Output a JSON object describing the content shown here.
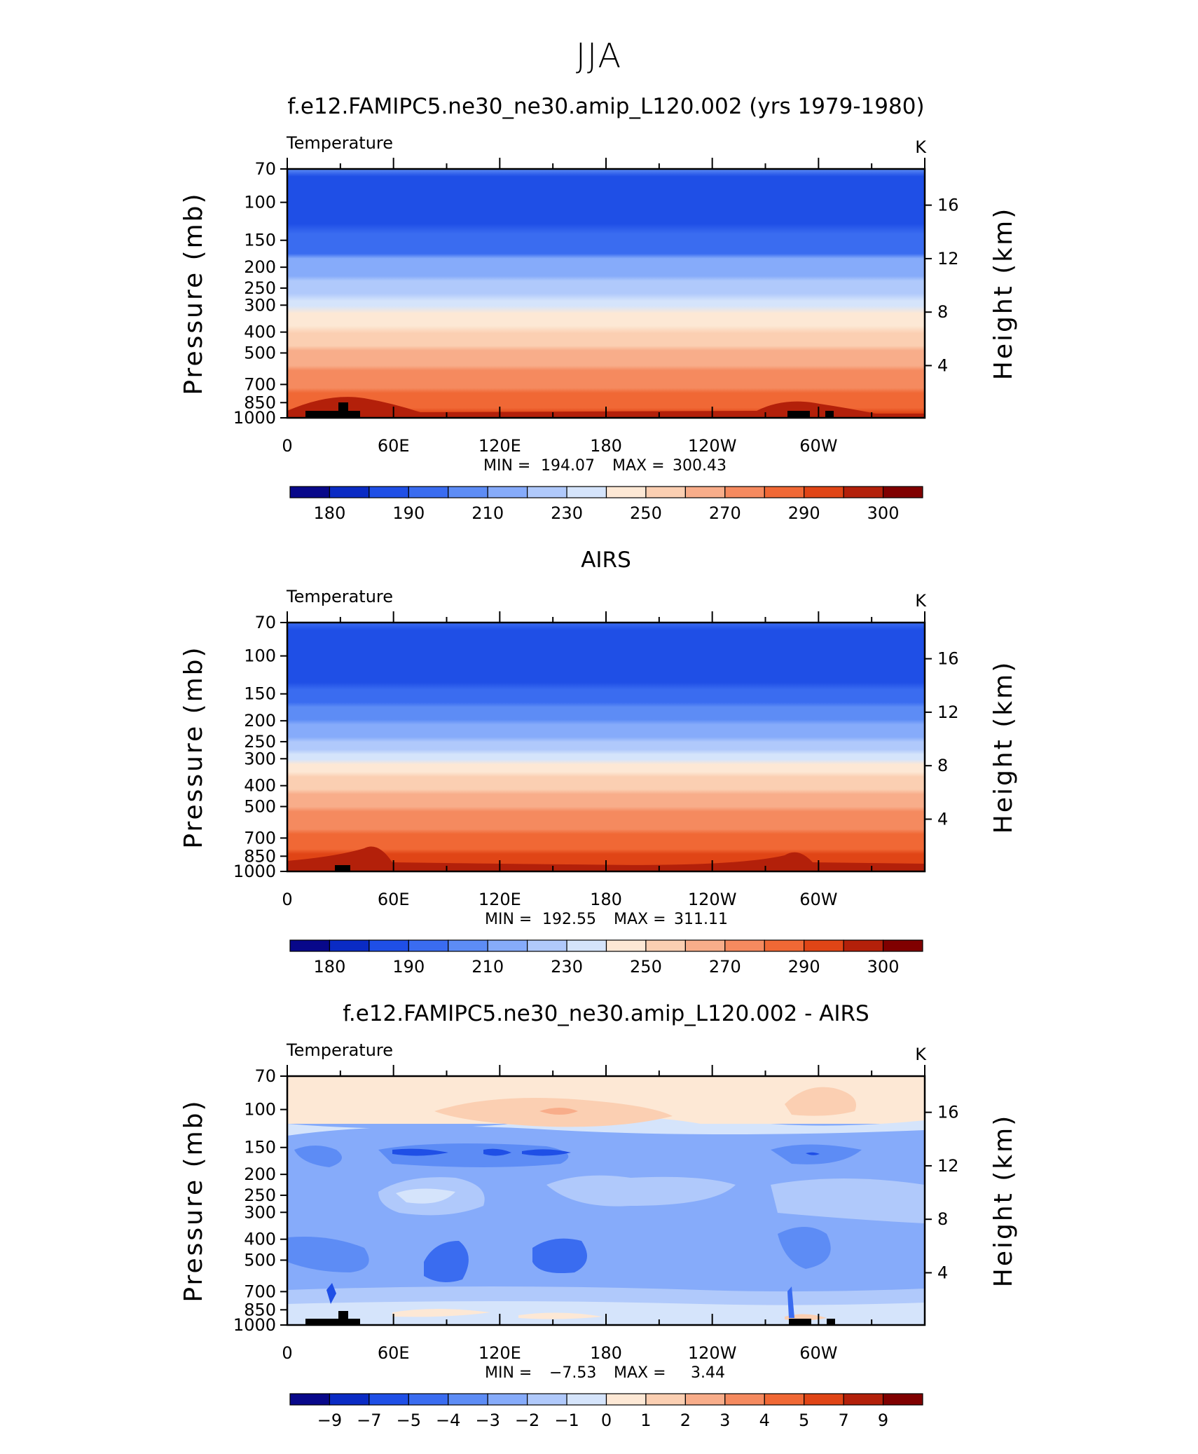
{
  "suptitle": "JJA",
  "panels": [
    {
      "title": "f.e12.FAMIPC5.ne30_ne30.amip_L120.002 (yrs 1979-1980)",
      "variable": "Temperature",
      "units": "K",
      "stats": {
        "min_label": "MIN =",
        "min": "194.07",
        "max_label": "MAX =",
        "max": "300.43"
      },
      "colorbar_labels": [
        "180",
        "190",
        "210",
        "230",
        "250",
        "270",
        "290",
        "300"
      ]
    },
    {
      "title": "AIRS",
      "variable": "Temperature",
      "units": "K",
      "stats": {
        "min_label": "MIN =",
        "min": "192.55",
        "max_label": "MAX =",
        "max": "311.11"
      },
      "colorbar_labels": [
        "180",
        "190",
        "210",
        "230",
        "250",
        "270",
        "290",
        "300"
      ]
    },
    {
      "title": "f.e12.FAMIPC5.ne30_ne30.amip_L120.002 - AIRS",
      "variable": "Temperature",
      "units": "K",
      "stats": {
        "min_label": "MIN =",
        "min": "−7.53",
        "max_label": "MAX =",
        "max": "3.44"
      },
      "colorbar_labels": [
        "−9",
        "−7",
        "−5",
        "−4",
        "−3",
        "−2",
        "−1",
        "0",
        "1",
        "2",
        "3",
        "4",
        "5",
        "7",
        "9"
      ]
    }
  ],
  "axes": {
    "pressure_label": "Pressure (mb)",
    "height_label": "Height (km)",
    "pressure_ticks": [
      "70",
      "100",
      "150",
      "200",
      "250",
      "300",
      "400",
      "500",
      "700",
      "850",
      "1000"
    ],
    "height_ticks": [
      "16",
      "12",
      "8",
      "4"
    ],
    "lon_ticks": [
      "0",
      "60E",
      "120E",
      "180",
      "120W",
      "60W"
    ]
  },
  "colormap": [
    "#08088a",
    "#0a2bc4",
    "#1f4fe6",
    "#3a6cf0",
    "#5d8cf5",
    "#86abfa",
    "#b0c9fb",
    "#d5e4fb",
    "#fde8d5",
    "#fbcfb2",
    "#f8ad8a",
    "#f58a5f",
    "#f06835",
    "#e04516",
    "#b3200a",
    "#800000"
  ],
  "chart_data": [
    {
      "type": "heatmap",
      "title": "f.e12.FAMIPC5.ne30_ne30.amip_L120.002 (yrs 1979-1980)",
      "subtitle": "Temperature",
      "xlabel": "",
      "ylabel": "Pressure (mb)",
      "y2label": "Height (km)",
      "units": "K",
      "x_ticks": [
        "0",
        "60E",
        "120E",
        "180",
        "120W",
        "60W"
      ],
      "y_ticks_mb": [
        70,
        100,
        150,
        200,
        250,
        300,
        400,
        500,
        700,
        850,
        1000
      ],
      "y2_ticks_km": [
        16,
        12,
        8,
        4
      ],
      "y_scale": "log",
      "ylim": [
        70,
        1000
      ],
      "contour_levels": [
        180,
        190,
        210,
        230,
        250,
        270,
        290,
        300
      ],
      "approx_zonal_profile": {
        "pressure_mb": [
          70,
          100,
          150,
          200,
          250,
          300,
          400,
          500,
          700,
          850,
          1000
        ],
        "temperature_K": [
          205,
          198,
          212,
          220,
          228,
          238,
          250,
          262,
          278,
          287,
          295
        ]
      },
      "min": 194.07,
      "max": 300.43
    },
    {
      "type": "heatmap",
      "title": "AIRS",
      "subtitle": "Temperature",
      "xlabel": "",
      "ylabel": "Pressure (mb)",
      "y2label": "Height (km)",
      "units": "K",
      "x_ticks": [
        "0",
        "60E",
        "120E",
        "180",
        "120W",
        "60W"
      ],
      "y_scale": "log",
      "ylim": [
        70,
        1000
      ],
      "contour_levels": [
        180,
        190,
        210,
        230,
        250,
        270,
        290,
        300
      ],
      "approx_zonal_profile": {
        "pressure_mb": [
          70,
          100,
          150,
          200,
          250,
          300,
          400,
          500,
          700,
          850,
          1000
        ],
        "temperature_K": [
          206,
          199,
          213,
          221,
          229,
          240,
          252,
          264,
          280,
          289,
          298
        ]
      },
      "min": 192.55,
      "max": 311.11
    },
    {
      "type": "heatmap",
      "title": "f.e12.FAMIPC5.ne30_ne30.amip_L120.002 - AIRS",
      "subtitle": "Temperature",
      "xlabel": "",
      "ylabel": "Pressure (mb)",
      "y2label": "Height (km)",
      "units": "K",
      "x_ticks": [
        "0",
        "60E",
        "120E",
        "180",
        "120W",
        "60W"
      ],
      "y_scale": "log",
      "ylim": [
        70,
        1000
      ],
      "contour_levels": [
        -9,
        -7,
        -5,
        -4,
        -3,
        -2,
        -1,
        0,
        1,
        2,
        3,
        4,
        5,
        7,
        9
      ],
      "approx_zonal_profile": {
        "pressure_mb": [
          70,
          100,
          150,
          200,
          250,
          300,
          400,
          500,
          700,
          850,
          1000
        ],
        "difference_K": [
          0.5,
          0.5,
          -2.5,
          -1.5,
          -1.5,
          -2,
          -2.5,
          -2.5,
          -1.5,
          -0.5,
          0
        ]
      },
      "min": -7.53,
      "max": 3.44
    }
  ]
}
